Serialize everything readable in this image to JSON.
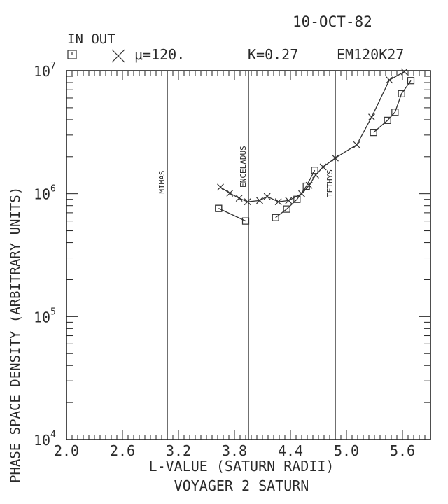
{
  "header": {
    "date": "10-OCT-82",
    "legend_title": "IN OUT",
    "mu": "μ=120.",
    "k": "K=0.27",
    "code": "EM120K27"
  },
  "chart_data": {
    "type": "scatter",
    "xlabel": "L-VALUE (SATURN RADII)",
    "ylabel": "PHASE SPACE DENSITY (ARBITRARY UNITS)",
    "subtitle": "VOYAGER 2 SATURN",
    "xlim": [
      2.0,
      5.9
    ],
    "ylim": [
      10000,
      10000000
    ],
    "yscale": "log",
    "x_ticks": [
      "2.0",
      "2.6",
      "3.2",
      "3.8",
      "4.4",
      "5.0",
      "5.6"
    ],
    "x_tick_values": [
      2.0,
      2.6,
      3.2,
      3.8,
      4.4,
      5.0,
      5.6
    ],
    "y_ticks": [
      {
        "value": 10000,
        "base": "10",
        "exp": "4"
      },
      {
        "value": 100000,
        "base": "10",
        "exp": "5"
      },
      {
        "value": 1000000,
        "base": "10",
        "exp": "6"
      },
      {
        "value": 10000000,
        "base": "10",
        "exp": "7"
      }
    ],
    "moons": [
      {
        "name": "MIMAS",
        "l": 3.08
      },
      {
        "name": "ENCELADUS",
        "l": 3.95
      },
      {
        "name": "TETHYS",
        "l": 4.88
      }
    ],
    "legend": [
      {
        "label": "IN",
        "marker": "square"
      },
      {
        "label": "OUT",
        "marker": "x"
      }
    ],
    "series": [
      {
        "name": "IN",
        "marker": "square",
        "segments": [
          [
            [
              3.63,
              760000
            ],
            [
              3.63,
              760000
            ],
            [
              3.92,
              600000
            ]
          ],
          [
            [
              4.24,
              640000
            ],
            [
              4.24,
              640000
            ],
            [
              4.36,
              750000
            ],
            [
              4.47,
              900000
            ],
            [
              4.57,
              1150000
            ],
            [
              4.66,
              1550000
            ]
          ],
          [
            [
              5.29,
              3150000
            ],
            [
              5.44,
              3950000
            ],
            [
              5.52,
              4600000
            ],
            [
              5.59,
              6500000
            ],
            [
              5.69,
              8300000
            ]
          ]
        ]
      },
      {
        "name": "OUT",
        "marker": "x",
        "segments": [
          [
            [
              3.65,
              1130000
            ],
            [
              3.75,
              1010000
            ],
            [
              3.85,
              920000
            ],
            [
              3.94,
              860000
            ],
            [
              4.07,
              880000
            ],
            [
              4.15,
              950000
            ],
            [
              4.27,
              860000
            ],
            [
              4.38,
              880000
            ],
            [
              4.52,
              1000000
            ],
            [
              4.6,
              1170000
            ],
            [
              4.67,
              1420000
            ],
            [
              4.75,
              1650000
            ],
            [
              4.88,
              1950000
            ],
            [
              5.11,
              2500000
            ],
            [
              5.27,
              4200000
            ],
            [
              5.46,
              8400000
            ],
            [
              5.62,
              9800000
            ]
          ]
        ]
      }
    ]
  }
}
